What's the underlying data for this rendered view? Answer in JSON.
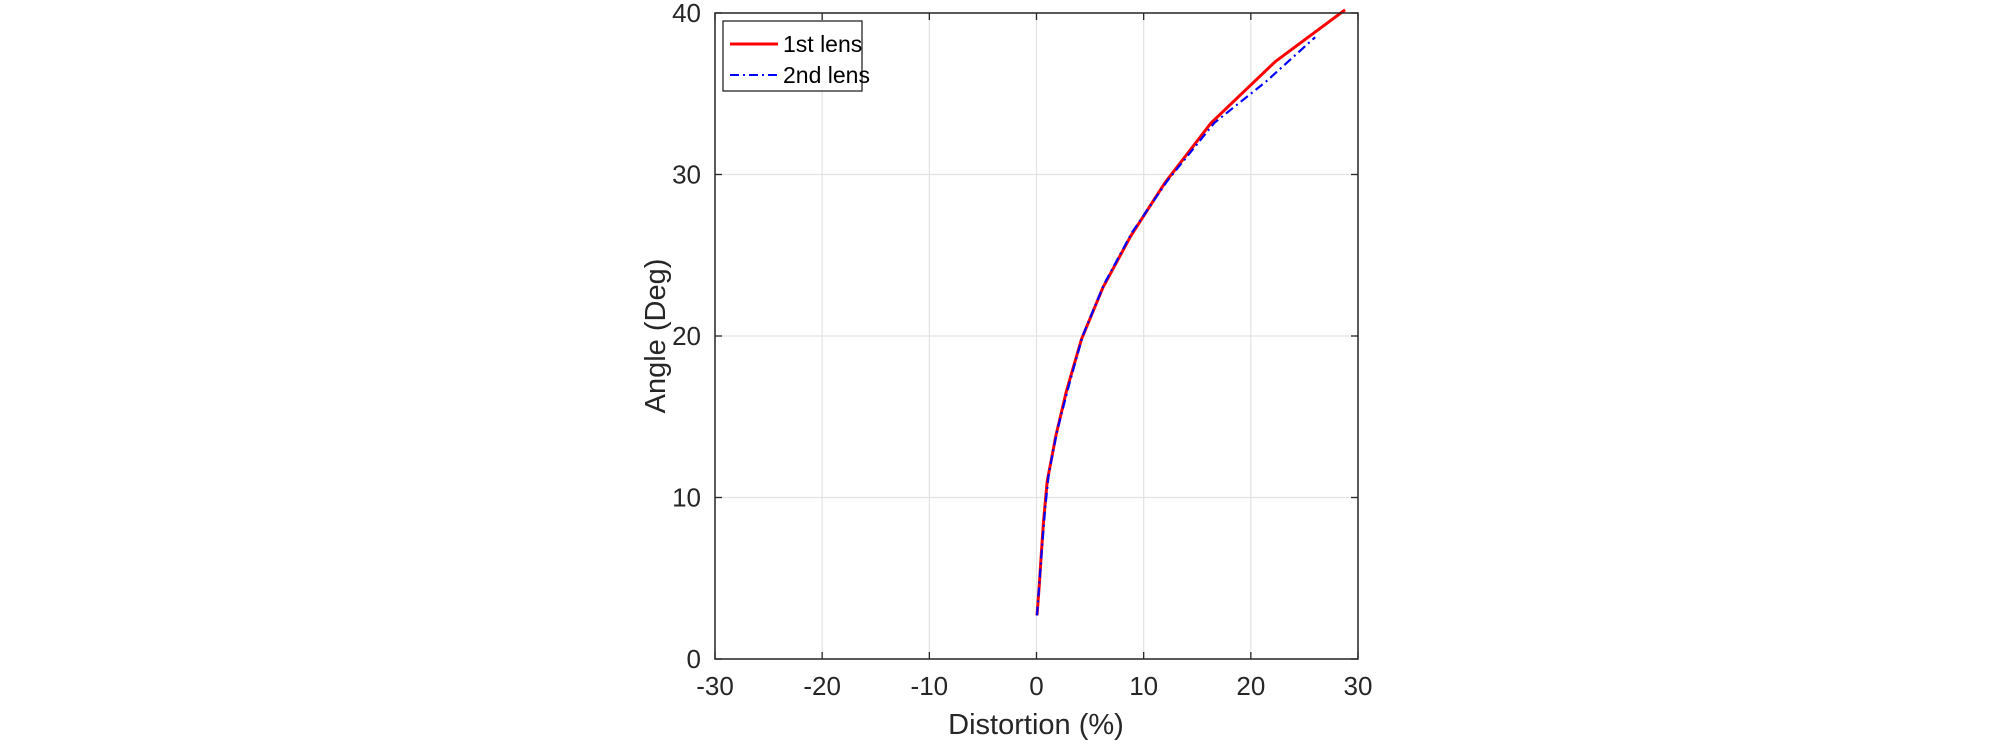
{
  "chart_data": {
    "type": "line",
    "title": "",
    "xlabel": "Distortion (%)",
    "ylabel": "Angle (Deg)",
    "xlim": [
      -30,
      30
    ],
    "ylim": [
      0,
      40
    ],
    "xticks": [
      -30,
      -20,
      -10,
      0,
      10,
      20,
      30
    ],
    "yticks": [
      0,
      10,
      20,
      30,
      40
    ],
    "xtick_labels": [
      "-30",
      "-20",
      "-10",
      "0",
      "10",
      "20",
      "30"
    ],
    "ytick_labels": [
      "0",
      "10",
      "20",
      "30",
      "40"
    ],
    "grid": true,
    "legend_position": "top-left",
    "series": [
      {
        "name": "1st lens",
        "color": "#ff0000",
        "line_style": "solid",
        "x": [
          0.05,
          0.25,
          0.45,
          0.65,
          1.0,
          1.8,
          2.8,
          4.2,
          6.2,
          8.8,
          12.0,
          16.3,
          22.3,
          28.8
        ],
        "y": [
          2.7,
          4.5,
          6.5,
          8.5,
          11.0,
          13.8,
          16.6,
          19.8,
          23.0,
          26.2,
          29.5,
          33.2,
          37.0,
          40.2
        ]
      },
      {
        "name": "2nd lens",
        "color": "#0000ff",
        "line_style": "dashdot",
        "x": [
          0.05,
          0.3,
          0.55,
          0.8,
          1.15,
          1.95,
          3.0,
          4.3,
          6.3,
          8.9,
          12.2,
          16.6,
          21.5,
          26.0
        ],
        "y": [
          2.7,
          5.0,
          7.2,
          9.3,
          11.5,
          14.2,
          16.9,
          20.0,
          23.2,
          26.4,
          29.6,
          33.2,
          35.8,
          38.5
        ]
      }
    ]
  }
}
